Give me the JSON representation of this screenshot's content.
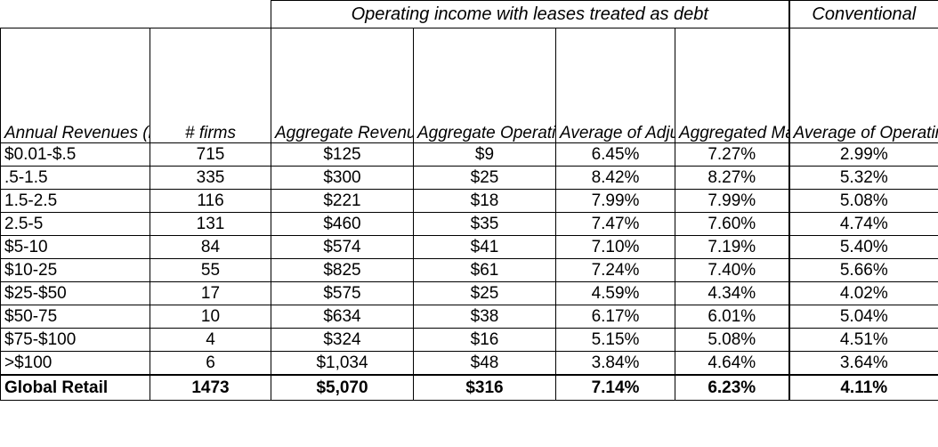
{
  "group_headers": {
    "lease": "Operating income with leases treated as debt",
    "conventional": "Conventional"
  },
  "columns": [
    "Annual\nRevenues (in $\nbillions)",
    "# firms",
    "Aggregate\nRevenues (in $\nbillions)",
    "Aggregate\nOperating\nIncome (in $\nbillions)",
    "Average of\nAdjusted\nOperating\nMargin",
    "Aggregated\nMargin",
    "Average of\nOperating\nMargin"
  ],
  "rows": [
    [
      "$0.01-$.5",
      "715",
      "$125",
      "$9",
      "6.45%",
      "7.27%",
      "2.99%"
    ],
    [
      ".5-1.5",
      "335",
      "$300",
      "$25",
      "8.42%",
      "8.27%",
      "5.32%"
    ],
    [
      "1.5-2.5",
      "116",
      "$221",
      "$18",
      "7.99%",
      "7.99%",
      "5.08%"
    ],
    [
      "2.5-5",
      "131",
      "$460",
      "$35",
      "7.47%",
      "7.60%",
      "4.74%"
    ],
    [
      "$5-10",
      "84",
      "$574",
      "$41",
      "7.10%",
      "7.19%",
      "5.40%"
    ],
    [
      "$10-25",
      "55",
      "$825",
      "$61",
      "7.24%",
      "7.40%",
      "5.66%"
    ],
    [
      "$25-$50",
      "17",
      "$575",
      "$25",
      "4.59%",
      "4.34%",
      "4.02%"
    ],
    [
      "$50-75",
      "10",
      "$634",
      "$38",
      "6.17%",
      "6.01%",
      "5.04%"
    ],
    [
      "$75-$100",
      "4",
      "$324",
      "$16",
      "5.15%",
      "5.08%",
      "4.51%"
    ],
    [
      ">$100",
      "6",
      "$1,034",
      "$48",
      "3.84%",
      "4.64%",
      "3.64%"
    ]
  ],
  "total": [
    "Global Retail",
    "1473",
    "$5,070",
    "$316",
    "7.14%",
    "6.23%",
    "4.11%"
  ]
}
